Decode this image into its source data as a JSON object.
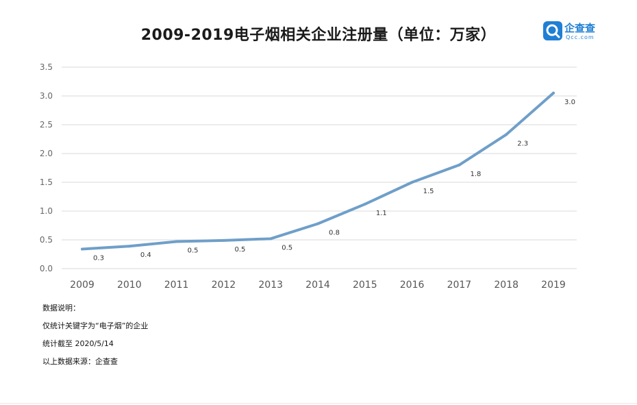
{
  "header": {
    "title": "2009-2019电子烟相关企业注册量（单位：万家）"
  },
  "logo": {
    "name": "企查查",
    "subtitle": "Qcc.com",
    "color": "#1f7fd4"
  },
  "notes": {
    "heading": "数据说明：",
    "lines": [
      "仅统计关键字为“电子烟”的企业",
      "统计截至 2020/5/14",
      "以上数据来源：企查查"
    ]
  },
  "chart_data": {
    "type": "line",
    "title": "2009-2019电子烟相关企业注册量（单位：万家）",
    "xlabel": "",
    "ylabel": "",
    "categories": [
      "2009",
      "2010",
      "2011",
      "2012",
      "2013",
      "2014",
      "2015",
      "2016",
      "2017",
      "2018",
      "2019"
    ],
    "series": [
      {
        "values": [
          0.34,
          0.39,
          0.47,
          0.49,
          0.52,
          0.78,
          1.12,
          1.5,
          1.8,
          2.33,
          3.05
        ],
        "labels": [
          "0.3",
          "0.4",
          "0.5",
          "0.5",
          "0.5",
          "0.8",
          "1.1",
          "1.5",
          "1.8",
          "2.3",
          "3.0"
        ],
        "color": "#6f9fc9"
      }
    ],
    "ylim": [
      0,
      3.5
    ],
    "yticks": [
      "0.0",
      "0.5",
      "1.0",
      "1.5",
      "2.0",
      "2.5",
      "3.0",
      "3.5"
    ],
    "ytick_values": [
      0,
      0.5,
      1.0,
      1.5,
      2.0,
      2.5,
      3.0,
      3.5
    ],
    "grid": true,
    "legend": "none"
  }
}
